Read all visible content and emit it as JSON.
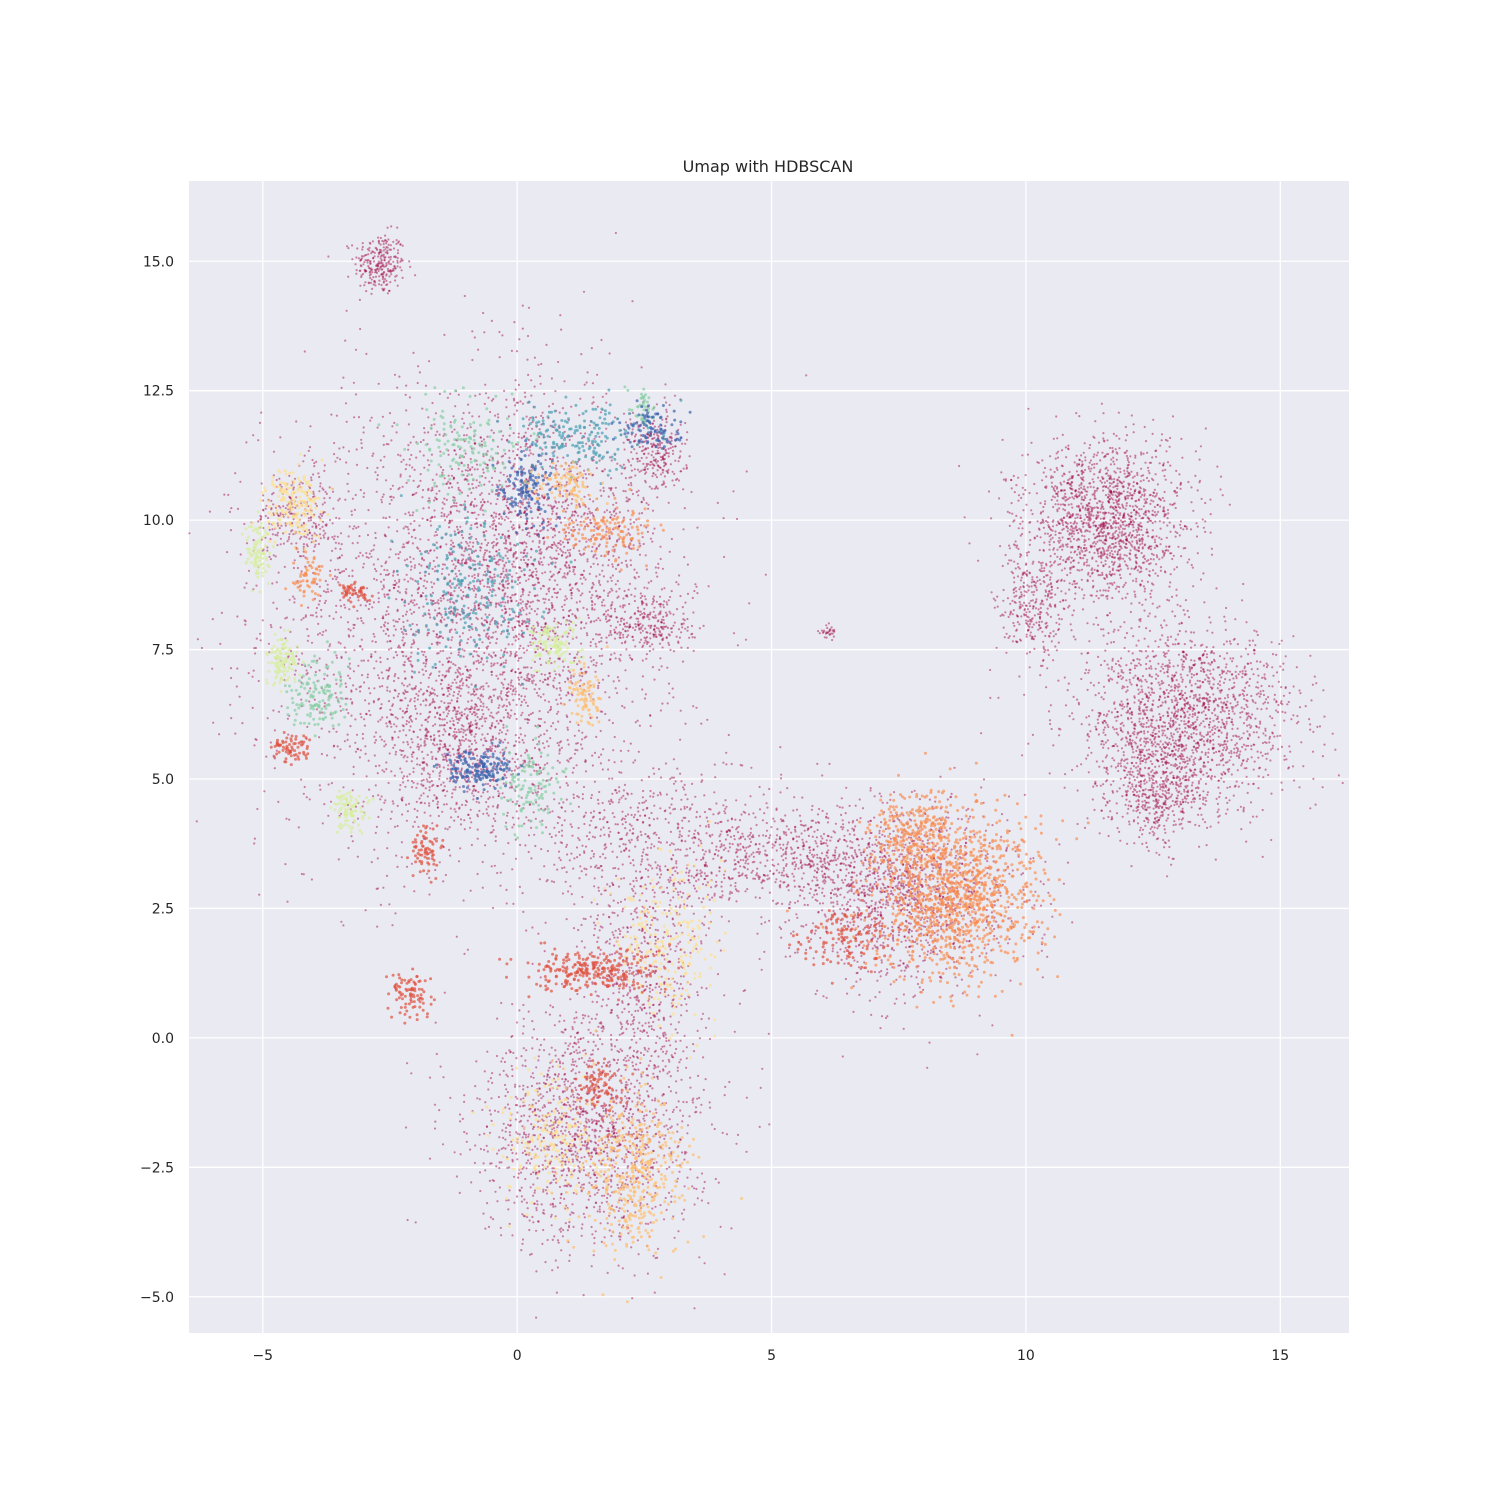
{
  "chart_data": {
    "type": "scatter",
    "title": "Umap with HDBSCAN",
    "xlabel": "",
    "ylabel": "",
    "xlim": [
      -6.45,
      16.35
    ],
    "ylim": [
      -5.7,
      16.55
    ],
    "xticks": [
      -5,
      0,
      5,
      10,
      15
    ],
    "yticks": [
      -5.0,
      -2.5,
      0.0,
      2.5,
      5.0,
      7.5,
      10.0,
      12.5,
      15.0
    ],
    "xtick_labels": [
      "−5",
      "0",
      "5",
      "10",
      "15"
    ],
    "ytick_labels": [
      "−5.0",
      "−2.5",
      "0.0",
      "2.5",
      "5.0",
      "7.5",
      "10.0",
      "12.5",
      "15.0"
    ],
    "grid": true,
    "legend": "none",
    "colors": {
      "background": "#eaeaf2",
      "grid": "#ffffff",
      "noise": "#9e0142",
      "red": "#e0513f",
      "orange": "#f88e53",
      "light_orange": "#fdbf6f",
      "yellow": "#fee08b",
      "light_green": "#d6ee9b",
      "green": "#88cfa4",
      "teal": "#4a9fb3",
      "blue": "#3c64ae"
    },
    "clusters": [
      {
        "color": "noise",
        "cx": -2.7,
        "cy": 14.95,
        "sx": 0.25,
        "sy": 0.3,
        "n": 260
      },
      {
        "color": "noise",
        "cx": -1.2,
        "cy": 8.0,
        "sx": 1.9,
        "sy": 2.2,
        "n": 2600
      },
      {
        "color": "noise",
        "cx": 0.4,
        "cy": 9.5,
        "sx": 1.2,
        "sy": 1.5,
        "n": 1400
      },
      {
        "color": "noise",
        "cx": -4.3,
        "cy": 10.1,
        "sx": 0.45,
        "sy": 0.4,
        "n": 260
      },
      {
        "color": "noise",
        "cx": 2.7,
        "cy": 11.3,
        "sx": 0.3,
        "sy": 0.4,
        "n": 260
      },
      {
        "color": "noise",
        "cx": 2.6,
        "cy": 8.0,
        "sx": 0.45,
        "sy": 0.35,
        "n": 260
      },
      {
        "color": "noise",
        "cx": -1.1,
        "cy": 5.6,
        "sx": 0.9,
        "sy": 0.8,
        "n": 700
      },
      {
        "color": "noise",
        "cx": 2.6,
        "cy": 3.7,
        "sx": 1.1,
        "sy": 0.9,
        "n": 600
      },
      {
        "color": "noise",
        "cx": 2.5,
        "cy": 1.0,
        "sx": 0.6,
        "sy": 1.0,
        "n": 500
      },
      {
        "color": "noise",
        "cx": 1.4,
        "cy": -1.8,
        "sx": 1.1,
        "sy": 1.1,
        "n": 1600
      },
      {
        "color": "noise",
        "cx": 5.2,
        "cy": 3.6,
        "sx": 1.0,
        "sy": 0.45,
        "n": 500
      },
      {
        "color": "noise",
        "cx": 7.6,
        "cy": 2.8,
        "sx": 1.1,
        "sy": 0.85,
        "n": 1400
      },
      {
        "color": "noise",
        "cx": 11.6,
        "cy": 10.0,
        "sx": 0.8,
        "sy": 0.75,
        "n": 1600
      },
      {
        "color": "noise",
        "cx": 10.1,
        "cy": 8.3,
        "sx": 0.35,
        "sy": 0.6,
        "n": 300
      },
      {
        "color": "noise",
        "cx": 13.2,
        "cy": 6.2,
        "sx": 1.1,
        "sy": 0.9,
        "n": 1700
      },
      {
        "color": "noise",
        "cx": 12.5,
        "cy": 4.8,
        "sx": 0.5,
        "sy": 0.5,
        "n": 500
      },
      {
        "color": "noise",
        "cx": 6.1,
        "cy": 7.85,
        "sx": 0.08,
        "sy": 0.08,
        "n": 30
      },
      {
        "color": "yellow",
        "cx": -4.4,
        "cy": 10.3,
        "sx": 0.3,
        "sy": 0.35,
        "n": 180
      },
      {
        "color": "light_green",
        "cx": -5.1,
        "cy": 9.4,
        "sx": 0.12,
        "sy": 0.3,
        "n": 90
      },
      {
        "color": "light_green",
        "cx": -4.6,
        "cy": 7.3,
        "sx": 0.15,
        "sy": 0.25,
        "n": 110
      },
      {
        "color": "light_green",
        "cx": -3.3,
        "cy": 4.4,
        "sx": 0.2,
        "sy": 0.2,
        "n": 90
      },
      {
        "color": "light_green",
        "cx": 0.7,
        "cy": 7.6,
        "sx": 0.25,
        "sy": 0.25,
        "n": 120
      },
      {
        "color": "green",
        "cx": -3.9,
        "cy": 6.6,
        "sx": 0.3,
        "sy": 0.35,
        "n": 130
      },
      {
        "color": "green",
        "cx": 0.3,
        "cy": 4.9,
        "sx": 0.3,
        "sy": 0.4,
        "n": 110
      },
      {
        "color": "green",
        "cx": -0.9,
        "cy": 11.4,
        "sx": 0.6,
        "sy": 0.5,
        "n": 140
      },
      {
        "color": "green",
        "cx": 2.5,
        "cy": 12.2,
        "sx": 0.15,
        "sy": 0.2,
        "n": 40
      },
      {
        "color": "teal",
        "cx": 1.2,
        "cy": 11.6,
        "sx": 0.6,
        "sy": 0.3,
        "n": 180
      },
      {
        "color": "teal",
        "cx": -1.0,
        "cy": 8.6,
        "sx": 0.6,
        "sy": 0.7,
        "n": 220
      },
      {
        "color": "blue",
        "cx": -0.8,
        "cy": 5.2,
        "sx": 0.35,
        "sy": 0.2,
        "n": 160
      },
      {
        "color": "blue",
        "cx": 0.2,
        "cy": 10.6,
        "sx": 0.3,
        "sy": 0.35,
        "n": 130
      },
      {
        "color": "blue",
        "cx": 2.7,
        "cy": 11.8,
        "sx": 0.3,
        "sy": 0.2,
        "n": 90
      },
      {
        "color": "light_orange",
        "cx": 0.9,
        "cy": 10.7,
        "sx": 0.3,
        "sy": 0.2,
        "n": 100
      },
      {
        "color": "light_orange",
        "cx": 1.3,
        "cy": 6.6,
        "sx": 0.15,
        "sy": 0.3,
        "n": 90
      },
      {
        "color": "light_orange",
        "cx": 2.3,
        "cy": -2.6,
        "sx": 0.5,
        "sy": 0.8,
        "n": 400
      },
      {
        "color": "yellow",
        "cx": 2.9,
        "cy": 1.9,
        "sx": 0.5,
        "sy": 0.8,
        "n": 220
      },
      {
        "color": "yellow",
        "cx": 0.6,
        "cy": -2.0,
        "sx": 0.5,
        "sy": 0.7,
        "n": 200
      },
      {
        "color": "red",
        "cx": 1.5,
        "cy": 1.3,
        "sx": 0.6,
        "sy": 0.2,
        "n": 260
      },
      {
        "color": "red",
        "cx": -2.1,
        "cy": 0.8,
        "sx": 0.25,
        "sy": 0.25,
        "n": 90
      },
      {
        "color": "red",
        "cx": -4.4,
        "cy": 5.6,
        "sx": 0.2,
        "sy": 0.15,
        "n": 70
      },
      {
        "color": "red",
        "cx": -3.2,
        "cy": 8.6,
        "sx": 0.15,
        "sy": 0.1,
        "n": 50
      },
      {
        "color": "red",
        "cx": -1.8,
        "cy": 3.6,
        "sx": 0.15,
        "sy": 0.25,
        "n": 70
      },
      {
        "color": "red",
        "cx": 1.6,
        "cy": -1.0,
        "sx": 0.25,
        "sy": 0.25,
        "n": 80
      },
      {
        "color": "red",
        "cx": 6.4,
        "cy": 1.9,
        "sx": 0.4,
        "sy": 0.3,
        "n": 120
      },
      {
        "color": "orange",
        "cx": 8.6,
        "cy": 2.7,
        "sx": 0.8,
        "sy": 0.8,
        "n": 1100
      },
      {
        "color": "orange",
        "cx": 7.8,
        "cy": 4.0,
        "sx": 0.4,
        "sy": 0.4,
        "n": 220
      },
      {
        "color": "orange",
        "cx": 1.7,
        "cy": 9.8,
        "sx": 0.5,
        "sy": 0.25,
        "n": 130
      },
      {
        "color": "orange",
        "cx": -4.1,
        "cy": 8.9,
        "sx": 0.15,
        "sy": 0.2,
        "n": 60
      }
    ]
  }
}
